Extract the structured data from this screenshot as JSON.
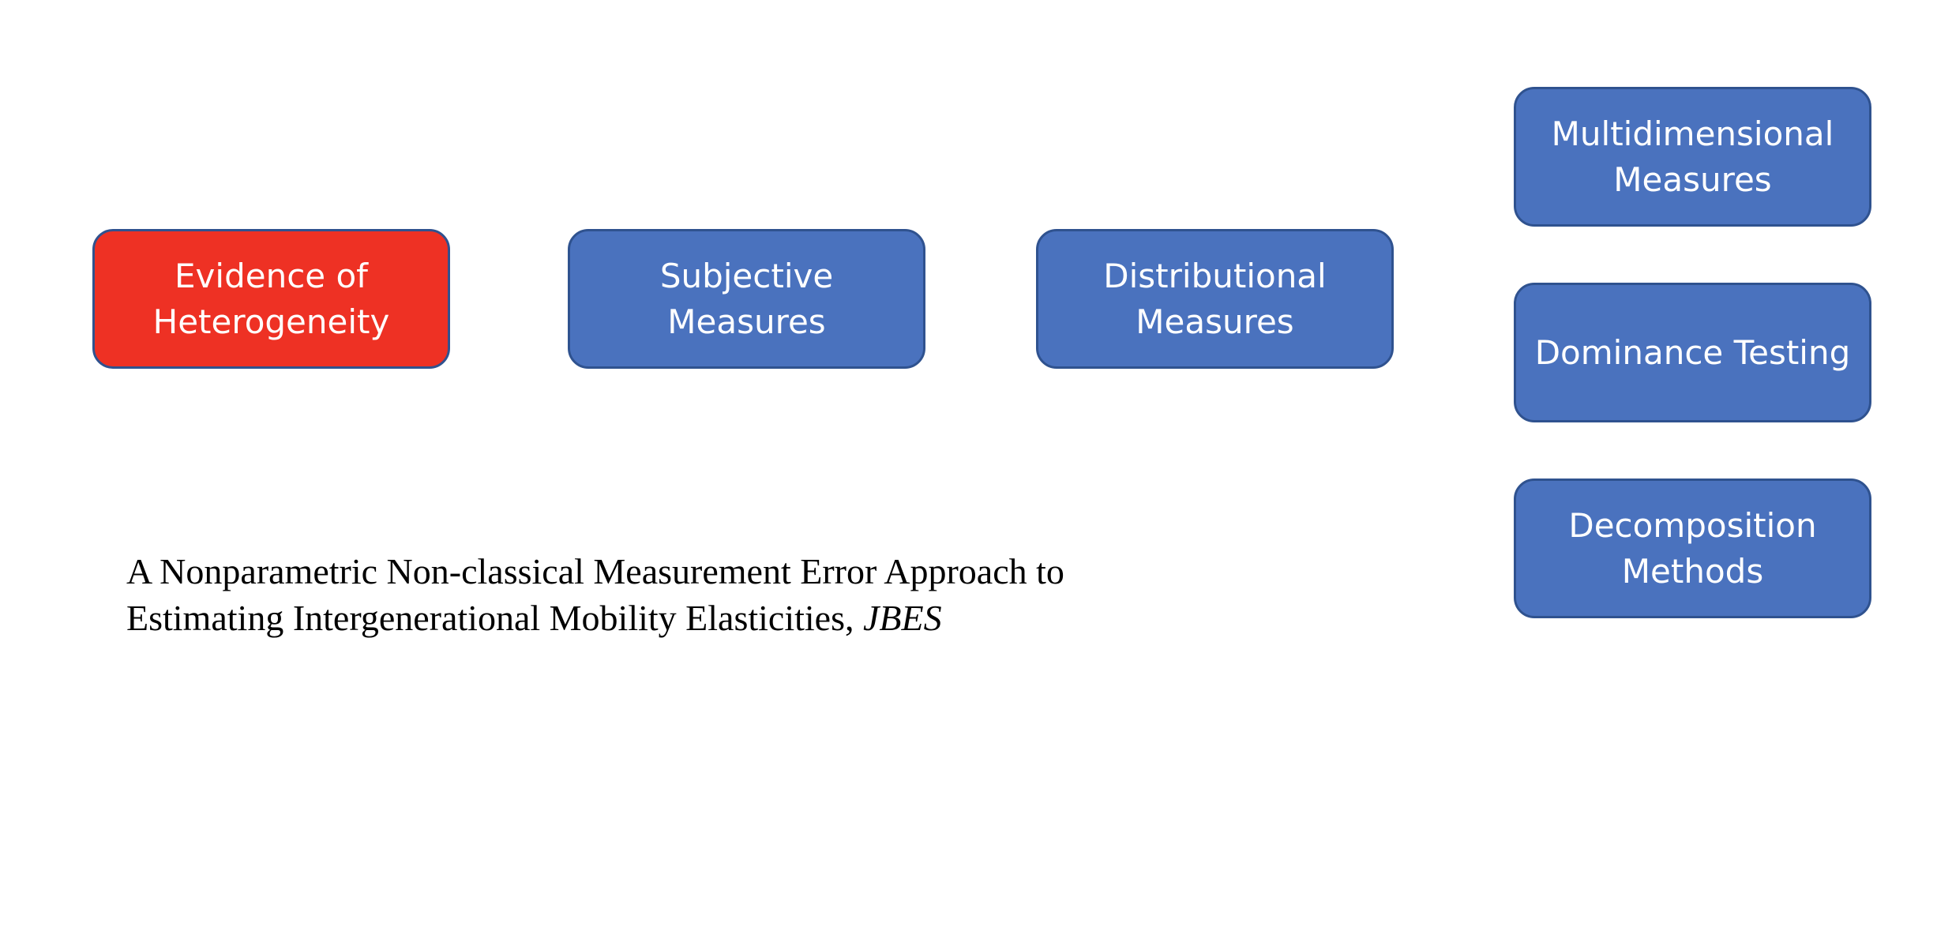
{
  "nodes": [
    {
      "id": "evidence",
      "label": "Evidence of\nHeterogeneity",
      "color": "#EE3124",
      "highlighted": true
    },
    {
      "id": "subjective",
      "label": "Subjective\nMeasures",
      "color": "#4A72BE"
    },
    {
      "id": "distributional",
      "label": "Distributional\nMeasures",
      "color": "#4A72BE"
    },
    {
      "id": "multidim",
      "label": "Multidimensional\nMeasures",
      "color": "#4A72BE"
    },
    {
      "id": "dominance",
      "label": "Dominance Testing",
      "color": "#4A72BE"
    },
    {
      "id": "decomposition",
      "label": "Decomposition\nMethods",
      "color": "#4A72BE"
    }
  ],
  "citation": {
    "title_line1": "A Nonparametric Non-classical Measurement Error Approach to",
    "title_line2": "Estimating Intergenerational Mobility Elasticities, ",
    "journal": "JBES"
  }
}
